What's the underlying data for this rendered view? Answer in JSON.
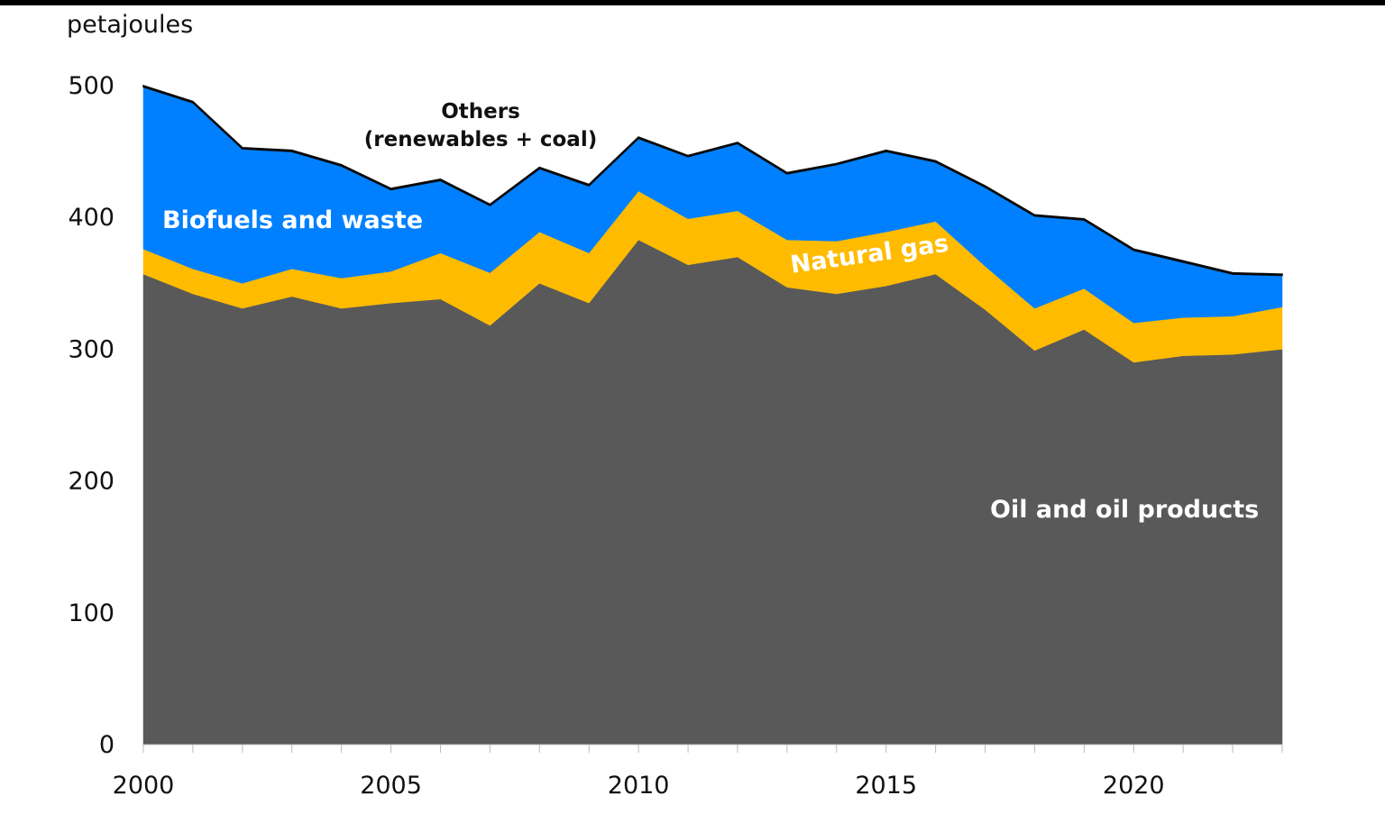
{
  "chart_data": {
    "type": "area",
    "stacked": true,
    "ylabel": "petajoules",
    "ylim": [
      0,
      500
    ],
    "yticks": [
      0,
      100,
      200,
      300,
      400,
      500
    ],
    "xlim": [
      2000,
      2023
    ],
    "xticks": [
      2000,
      2005,
      2010,
      2015,
      2020
    ],
    "x": [
      2000,
      2001,
      2002,
      2003,
      2004,
      2005,
      2006,
      2007,
      2008,
      2009,
      2010,
      2011,
      2012,
      2013,
      2014,
      2015,
      2016,
      2017,
      2018,
      2019,
      2020,
      2021,
      2022,
      2023
    ],
    "series": [
      {
        "name": "Oil and oil products",
        "color": "#595959",
        "values": [
          357,
          342,
          331,
          340,
          331,
          335,
          338,
          318,
          350,
          335,
          383,
          364,
          370,
          347,
          342,
          348,
          357,
          330,
          299,
          315,
          290,
          295,
          296,
          300
        ]
      },
      {
        "name": "Natural gas",
        "color": "#FFBB00",
        "values": [
          19,
          19,
          19,
          21,
          23,
          24,
          35,
          40,
          39,
          38,
          37,
          35,
          35,
          36,
          40,
          41,
          40,
          33,
          32,
          31,
          30,
          29,
          29,
          32
        ]
      },
      {
        "name": "Biofuels and waste",
        "color": "#0080FF",
        "values": [
          123,
          126,
          102,
          89,
          85,
          62,
          55,
          51,
          48,
          51,
          40,
          47,
          51,
          50,
          58,
          61,
          45,
          60,
          70,
          52,
          55,
          42,
          32,
          24
        ]
      },
      {
        "name": "Others\n(renewables + coal)",
        "color": "#0a0a0a",
        "values": [
          1,
          1,
          1,
          1,
          1,
          1,
          1,
          1,
          1,
          1,
          1,
          1,
          1,
          1,
          1,
          1,
          1,
          1,
          1,
          1,
          1,
          1,
          1,
          1
        ]
      }
    ],
    "annotations": {
      "others_line1": "Others",
      "others_line2": "(renewables + coal)",
      "biofuels": "Biofuels and waste",
      "natural_gas": "Natural gas",
      "oil": "Oil and oil products"
    },
    "grid": false,
    "legend": "none (direct labels)"
  }
}
